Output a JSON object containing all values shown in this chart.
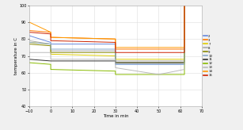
{
  "title": "",
  "xlabel": "Time in min",
  "ylabel": "temperature in C",
  "xlim": [
    -10,
    70
  ],
  "ylim": [
    40,
    100
  ],
  "yticks": [
    40,
    50,
    60,
    70,
    80,
    90,
    100
  ],
  "xticks": [
    -10,
    0,
    10,
    20,
    30,
    40,
    50,
    60,
    70
  ],
  "legend_labels": [
    "2",
    "3",
    "7",
    "8",
    "9",
    "10",
    "11",
    "12",
    "13",
    "14",
    "15"
  ],
  "legend_colors": [
    "#6688dd",
    "#ff7700",
    "#ddcc00",
    "#aaaaaa",
    "#888800",
    "#88aacc",
    "#333333",
    "#88bb00",
    "#bbbbbb",
    "#ff9900",
    "#cc2200"
  ],
  "series": [
    {
      "label": "2",
      "color": "#6688dd",
      "points": [
        [
          -10,
          82
        ],
        [
          0,
          78
        ],
        [
          0,
          77
        ],
        [
          30,
          77
        ],
        [
          30,
          65
        ],
        [
          62,
          65
        ],
        [
          62,
          180
        ],
        [
          70,
          180
        ]
      ]
    },
    {
      "label": "3",
      "color": "#ff7700",
      "points": [
        [
          -10,
          85
        ],
        [
          0,
          84
        ],
        [
          0,
          81
        ],
        [
          30,
          80
        ],
        [
          30,
          74
        ],
        [
          62,
          74
        ],
        [
          62,
          180
        ],
        [
          70,
          180
        ]
      ]
    },
    {
      "label": "7",
      "color": "#ddcc00",
      "points": [
        [
          -10,
          78
        ],
        [
          0,
          77
        ],
        [
          0,
          71
        ],
        [
          30,
          70
        ],
        [
          30,
          68
        ],
        [
          62,
          68
        ],
        [
          62,
          180
        ],
        [
          70,
          180
        ]
      ]
    },
    {
      "label": "8",
      "color": "#aaaaaa",
      "points": [
        [
          -10,
          79
        ],
        [
          0,
          77
        ],
        [
          0,
          73
        ],
        [
          30,
          73
        ],
        [
          30,
          67
        ],
        [
          62,
          67
        ],
        [
          62,
          180
        ],
        [
          70,
          180
        ]
      ]
    },
    {
      "label": "9",
      "color": "#888800",
      "points": [
        [
          -10,
          77
        ],
        [
          0,
          76
        ],
        [
          0,
          72
        ],
        [
          30,
          72
        ],
        [
          30,
          66
        ],
        [
          62,
          66
        ],
        [
          62,
          180
        ],
        [
          70,
          180
        ]
      ]
    },
    {
      "label": "10",
      "color": "#88aacc",
      "points": [
        [
          -10,
          78
        ],
        [
          0,
          77
        ],
        [
          0,
          74
        ],
        [
          30,
          74
        ],
        [
          30,
          65
        ],
        [
          62,
          65
        ],
        [
          62,
          180
        ],
        [
          70,
          180
        ]
      ]
    },
    {
      "label": "11",
      "color": "#333333",
      "points": [
        [
          -10,
          68
        ],
        [
          0,
          67
        ],
        [
          0,
          67
        ],
        [
          30,
          67
        ],
        [
          30,
          66
        ],
        [
          62,
          66
        ],
        [
          62,
          180
        ],
        [
          70,
          180
        ]
      ]
    },
    {
      "label": "12",
      "color": "#88bb00",
      "points": [
        [
          -10,
          66
        ],
        [
          0,
          65
        ],
        [
          0,
          62
        ],
        [
          30,
          61
        ],
        [
          30,
          59
        ],
        [
          62,
          59
        ],
        [
          62,
          180
        ],
        [
          70,
          180
        ]
      ]
    },
    {
      "label": "13",
      "color": "#bbbbbb",
      "points": [
        [
          -10,
          72
        ],
        [
          0,
          72
        ],
        [
          0,
          68
        ],
        [
          30,
          68
        ],
        [
          30,
          63
        ],
        [
          50,
          59
        ],
        [
          62,
          62
        ],
        [
          62,
          180
        ],
        [
          70,
          180
        ]
      ]
    },
    {
      "label": "14",
      "color": "#ff9900",
      "points": [
        [
          -10,
          90
        ],
        [
          0,
          84
        ],
        [
          0,
          81
        ],
        [
          30,
          80
        ],
        [
          30,
          75
        ],
        [
          62,
          75
        ],
        [
          62,
          180
        ],
        [
          70,
          180
        ]
      ]
    },
    {
      "label": "15",
      "color": "#cc2200",
      "points": [
        [
          -10,
          84
        ],
        [
          0,
          83
        ],
        [
          0,
          79
        ],
        [
          30,
          78
        ],
        [
          30,
          72
        ],
        [
          62,
          72
        ],
        [
          62,
          180
        ],
        [
          70,
          180
        ]
      ]
    }
  ],
  "bg_color": "#f0f0f0",
  "plot_bg": "#ffffff",
  "grid_color": "#dddddd",
  "figsize": [
    3.07,
    1.64
  ],
  "dpi": 100
}
